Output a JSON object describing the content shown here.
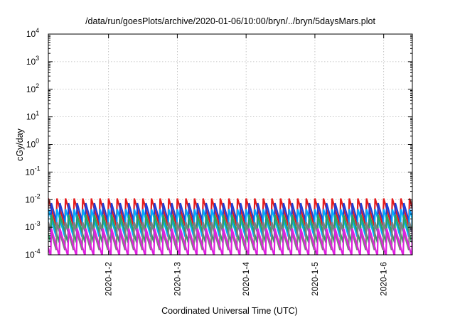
{
  "chart_data": {
    "type": "line",
    "title": "/data/run/goesPlots/archive/2020-01-06/10:00/bryn/../bryn/5daysMars.plot",
    "xlabel": "Coordinated Universal Time (UTC)",
    "ylabel": "cGy/day",
    "yscale": "log",
    "ylim": [
      0.0001,
      10000
    ],
    "xlim": [
      "2020-01-01 03:00",
      "2020-01-06 10:00"
    ],
    "grid": true,
    "x_ticks": [
      "2020-1-2",
      "2020-1-3",
      "2020-1-4",
      "2020-1-5",
      "2020-1-6"
    ],
    "y_ticks": [
      {
        "base": "10",
        "exp": "-4"
      },
      {
        "base": "10",
        "exp": "-3"
      },
      {
        "base": "10",
        "exp": "-2"
      },
      {
        "base": "10",
        "exp": "-1"
      },
      {
        "base": "10",
        "exp": "0"
      },
      {
        "base": "10",
        "exp": "1"
      },
      {
        "base": "10",
        "exp": "2"
      },
      {
        "base": "10",
        "exp": "3"
      },
      {
        "base": "10",
        "exp": "4"
      }
    ],
    "sawtooth_period_hours": 3,
    "series": [
      {
        "color": "#e41a1c",
        "peak": 0.011,
        "trough": 0.0011
      },
      {
        "color": "#1f3fd6",
        "peak": 0.0075,
        "trough": 0.0007
      },
      {
        "color": "#00aaff",
        "peak": 0.0045,
        "trough": 0.00045
      },
      {
        "color": "#2ca25f",
        "peak": 0.0028,
        "trough": 0.00028
      },
      {
        "color": "#7f7f7f",
        "peak": 0.0015,
        "trough": 0.00015
      },
      {
        "color": "#e01ee0",
        "peak": 0.0009,
        "trough": 9e-05
      }
    ]
  }
}
